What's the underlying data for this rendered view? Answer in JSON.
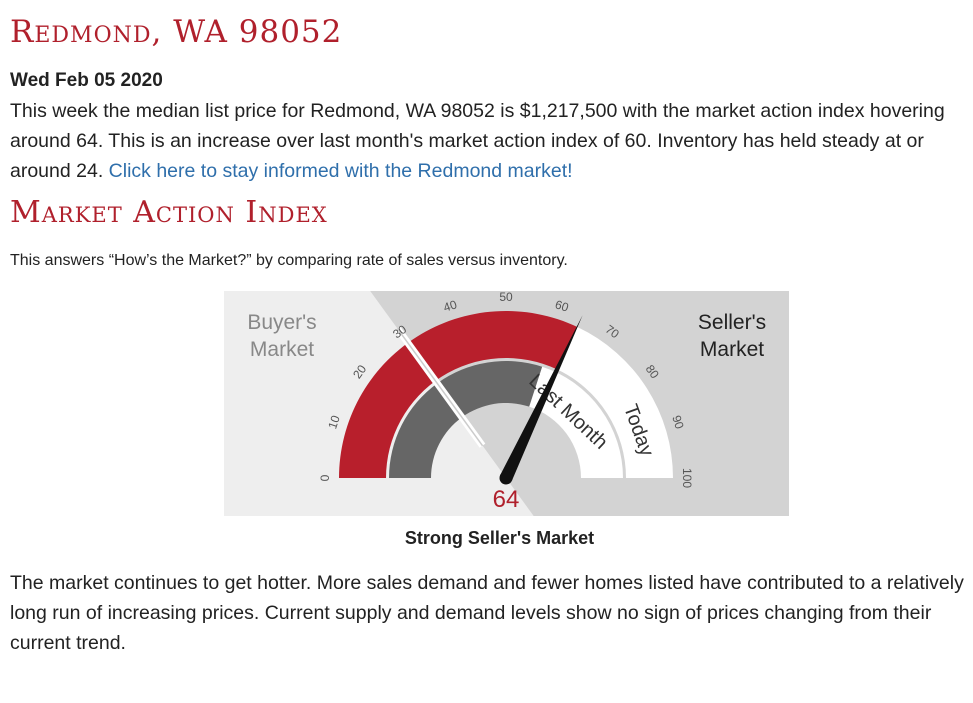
{
  "header": {
    "location_title": "Redmond, WA 98052",
    "date": "Wed Feb 05 2020"
  },
  "summary": {
    "text": "This week the median list price for Redmond, WA 98052 is $1,217,500 with the market action index hovering around 64. This is an increase over last month's market action index of 60. Inventory has held steady at or around 24.",
    "link_text": "Click here to stay informed with the Redmond market!"
  },
  "mai": {
    "title": "Market Action Index",
    "intro": "This answers “How’s the Market?” by comparing rate of sales versus inventory.",
    "buyers_label_line1": "Buyer's",
    "buyers_label_line2": "Market",
    "sellers_label_line1": "Seller's",
    "sellers_label_line2": "Market",
    "last_month_label": "Last Month",
    "today_label": "Today",
    "value_label": "64",
    "caption": "Strong Seller's Market",
    "conclusion": "The market continues to get hotter. More sales demand and fewer homes listed have contributed to a relatively long run of increasing prices. Current supply and demand levels show no sign of prices changing from their current trend."
  },
  "chart_data": {
    "type": "gauge",
    "scale": [
      0,
      100
    ],
    "ticks": [
      "0",
      "10",
      "20",
      "30",
      "40",
      "50",
      "60",
      "70",
      "80",
      "90",
      "100"
    ],
    "today": 64,
    "last_month": 60,
    "threshold": 30,
    "colors": {
      "red": "#b81f2c",
      "dark": "#666666",
      "buyer_bg": "#eeeeee",
      "seller_bg": "#d3d3d3"
    }
  }
}
